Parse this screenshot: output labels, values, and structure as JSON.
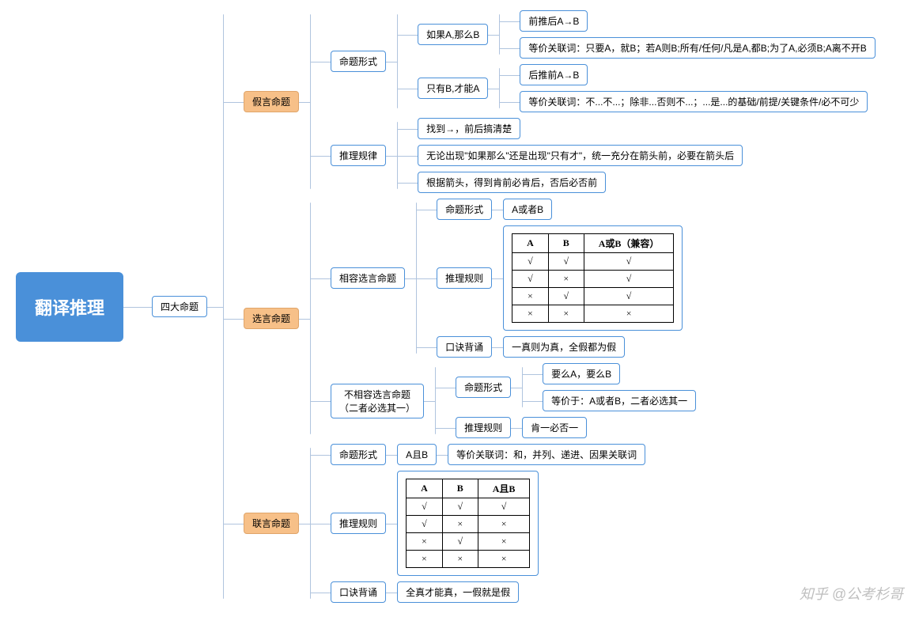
{
  "root": "翻译推理",
  "level2": "四大命题",
  "branches": {
    "jiayen": {
      "label": "假言命题",
      "mingti": {
        "label": "命题形式",
        "ruguo": {
          "label": "如果A,那么B",
          "c1": "前推后A→B",
          "c2": "等价关联词：只要A，就B；若A则B;所有/任何/凡是A,都B;为了A,必须B;A离不开B"
        },
        "zhiyou": {
          "label": "只有B,才能A",
          "c1": "后推前A→B",
          "c2": "等价关联词：不...不...；除非...否则不...；...是...的基础/前提/关键条件/必不可少"
        }
      },
      "tuili": {
        "label": "推理规律",
        "c1": "找到→，前后搞清楚",
        "c2": "无论出现\"如果那么\"还是出现\"只有才\"，统一充分在箭头前，必要在箭头后",
        "c3": "根据箭头，得到肯前必肯后，否后必否前"
      }
    },
    "xuanyan": {
      "label": "选言命题",
      "xiangrong": {
        "label": "相容选言命题",
        "mingti": {
          "label": "命题形式",
          "val": "A或者B"
        },
        "tuili": {
          "label": "推理规则",
          "table": {
            "headers": [
              "A",
              "B",
              "A或B（兼容）"
            ],
            "rows": [
              [
                "√",
                "√",
                "√"
              ],
              [
                "√",
                "×",
                "√"
              ],
              [
                "×",
                "√",
                "√"
              ],
              [
                "×",
                "×",
                "×"
              ]
            ]
          }
        },
        "koujue": {
          "label": "口诀背诵",
          "val": "一真则为真，全假都为假"
        }
      },
      "buxiangrong": {
        "label": "不相容选言命题\n（二者必选其一）",
        "mingti": {
          "label": "命题形式",
          "c1": "要么A，要么B",
          "c2": "等价于：A或者B，二者必选其一"
        },
        "tuili": {
          "label": "推理规则",
          "val": "肯一必否一"
        }
      }
    },
    "lianyan": {
      "label": "联言命题",
      "mingti": {
        "label": "命题形式",
        "val": "A且B",
        "extra": "等价关联词：和，并列、递进、因果关联词"
      },
      "tuili": {
        "label": "推理规则",
        "table": {
          "headers": [
            "A",
            "B",
            "A且B"
          ],
          "rows": [
            [
              "√",
              "√",
              "√"
            ],
            [
              "√",
              "×",
              "×"
            ],
            [
              "×",
              "√",
              "×"
            ],
            [
              "×",
              "×",
              "×"
            ]
          ]
        }
      },
      "koujue": {
        "label": "口诀背诵",
        "val": "全真才能真，一假就是假"
      }
    }
  },
  "watermark": "知乎 @公考杉哥",
  "colors": {
    "border": "#4a90d9",
    "orange": "#f7c088",
    "rootbg": "#4a90d9"
  }
}
